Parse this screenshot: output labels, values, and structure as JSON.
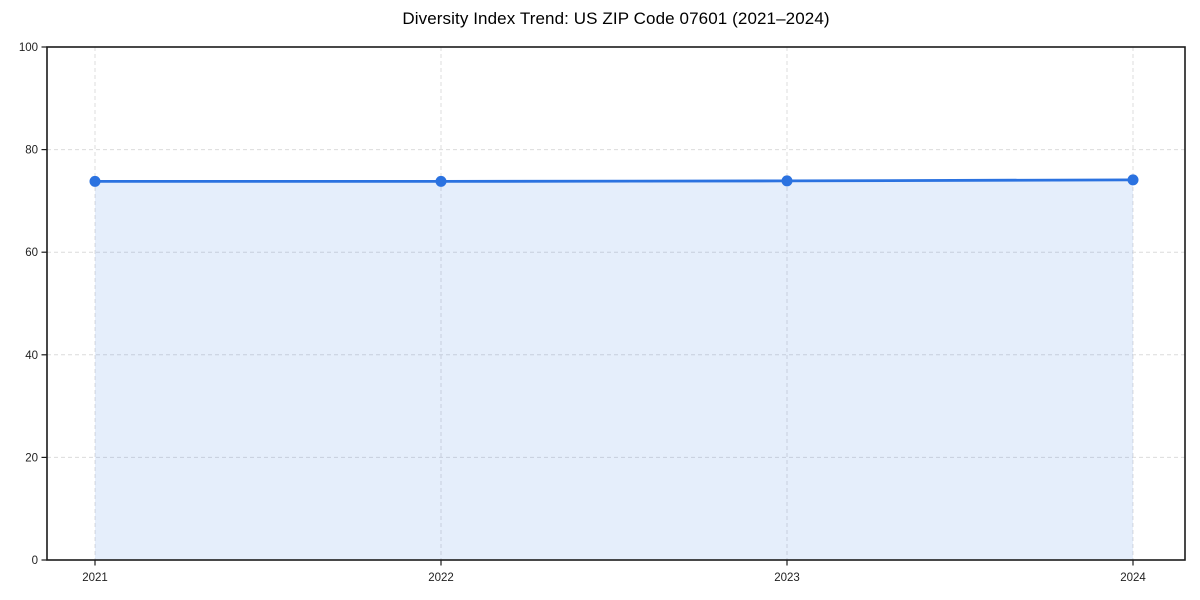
{
  "chart_data": {
    "type": "area",
    "title": "Diversity Index Trend: US ZIP Code 07601 (2021–2024)",
    "x": [
      2021,
      2022,
      2023,
      2024
    ],
    "series": [
      {
        "name": "Diversity Index",
        "values": [
          73.8,
          73.8,
          73.9,
          74.1
        ]
      }
    ],
    "xlabel": "",
    "ylabel": "",
    "ylim": [
      0,
      100
    ],
    "yticks": [
      0,
      20,
      40,
      60,
      80,
      100
    ],
    "xtick_labels": [
      "2021",
      "2022",
      "2023",
      "2024"
    ],
    "grid": "on",
    "grid_style": "dashed",
    "legend_position": "none",
    "marker": "circle",
    "colors": {
      "line": "#2b72e0",
      "marker": "#2b72e0",
      "area_fill": "rgba(43,114,224,0.12)",
      "grid": "#dcdcdc",
      "spine": "#1c1c1c",
      "tick_label": "#1f1f1f",
      "title": "#000000",
      "background": "#ffffff"
    }
  }
}
